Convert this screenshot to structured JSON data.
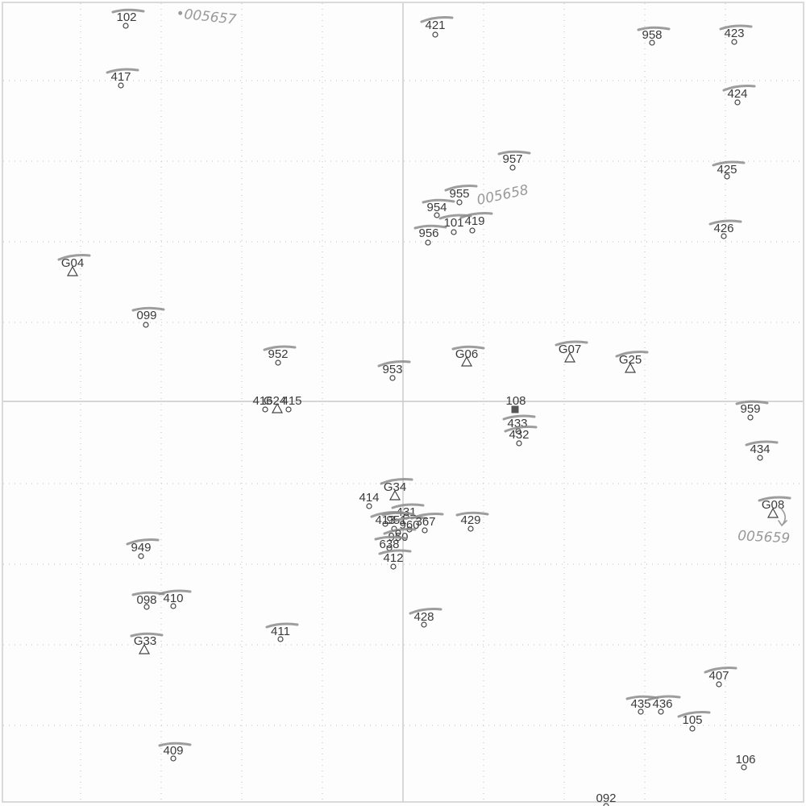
{
  "map": {
    "points": [
      {
        "id": "102",
        "kind": "station",
        "marked": true
      },
      {
        "id": "417",
        "kind": "station",
        "marked": true
      },
      {
        "id": "421",
        "kind": "station",
        "marked": true
      },
      {
        "id": "958",
        "kind": "station",
        "marked": true
      },
      {
        "id": "423",
        "kind": "station",
        "marked": true
      },
      {
        "id": "424",
        "kind": "station",
        "marked": true
      },
      {
        "id": "957",
        "kind": "station",
        "marked": true
      },
      {
        "id": "425",
        "kind": "station",
        "marked": true
      },
      {
        "id": "955",
        "kind": "station",
        "marked": true
      },
      {
        "id": "954",
        "kind": "station",
        "marked": true
      },
      {
        "id": "101",
        "kind": "station",
        "marked": true
      },
      {
        "id": "419",
        "kind": "station",
        "marked": true
      },
      {
        "id": "956",
        "kind": "station",
        "marked": true
      },
      {
        "id": "426",
        "kind": "station",
        "marked": true
      },
      {
        "id": "G04",
        "kind": "control",
        "marked": true
      },
      {
        "id": "099",
        "kind": "station",
        "marked": true
      },
      {
        "id": "952",
        "kind": "station",
        "marked": true
      },
      {
        "id": "953",
        "kind": "station",
        "marked": true
      },
      {
        "id": "G06",
        "kind": "control",
        "marked": true
      },
      {
        "id": "G07",
        "kind": "control",
        "marked": true
      },
      {
        "id": "G25",
        "kind": "control",
        "marked": true
      },
      {
        "id": "416",
        "kind": "station",
        "marked": false
      },
      {
        "id": "G24",
        "kind": "control",
        "marked": false
      },
      {
        "id": "415",
        "kind": "station",
        "marked": false
      },
      {
        "id": "108",
        "kind": "benchmark",
        "marked": false
      },
      {
        "id": "433",
        "kind": "station",
        "marked": true
      },
      {
        "id": "432",
        "kind": "station",
        "marked": true
      },
      {
        "id": "959",
        "kind": "station",
        "marked": true
      },
      {
        "id": "434",
        "kind": "station",
        "marked": true
      },
      {
        "id": "G34",
        "kind": "control",
        "marked": true
      },
      {
        "id": "414",
        "kind": "station",
        "marked": false
      },
      {
        "id": "431",
        "kind": "station",
        "marked": true
      },
      {
        "id": "413",
        "kind": "station",
        "marked": true
      },
      {
        "id": "951",
        "kind": "station",
        "marked": true
      },
      {
        "id": "960",
        "kind": "station",
        "marked": true
      },
      {
        "id": "367",
        "kind": "station",
        "marked": true
      },
      {
        "id": "429",
        "kind": "station",
        "marked": true
      },
      {
        "id": "G08",
        "kind": "control",
        "marked": true
      },
      {
        "id": "950",
        "kind": "station",
        "marked": true
      },
      {
        "id": "638",
        "kind": "station",
        "marked": true
      },
      {
        "id": "412",
        "kind": "station",
        "marked": true
      },
      {
        "id": "949",
        "kind": "station",
        "marked": true
      },
      {
        "id": "098",
        "kind": "station",
        "marked": true
      },
      {
        "id": "410",
        "kind": "station",
        "marked": true
      },
      {
        "id": "428",
        "kind": "station",
        "marked": true
      },
      {
        "id": "G33",
        "kind": "control",
        "marked": true
      },
      {
        "id": "411",
        "kind": "station",
        "marked": true
      },
      {
        "id": "407",
        "kind": "station",
        "marked": true
      },
      {
        "id": "435",
        "kind": "station",
        "marked": true
      },
      {
        "id": "436",
        "kind": "station",
        "marked": true
      },
      {
        "id": "105",
        "kind": "station",
        "marked": true
      },
      {
        "id": "409",
        "kind": "station",
        "marked": true
      },
      {
        "id": "106",
        "kind": "station",
        "marked": false
      },
      {
        "id": "092",
        "kind": "station",
        "marked": false
      }
    ],
    "annotations": [
      {
        "text": "•005657"
      },
      {
        "text": "005658"
      },
      {
        "text": "005659"
      }
    ],
    "colors": {
      "ink": "#3a3a3a",
      "pencil": "#8c8c8c",
      "grid": "#c9c9c9"
    }
  }
}
